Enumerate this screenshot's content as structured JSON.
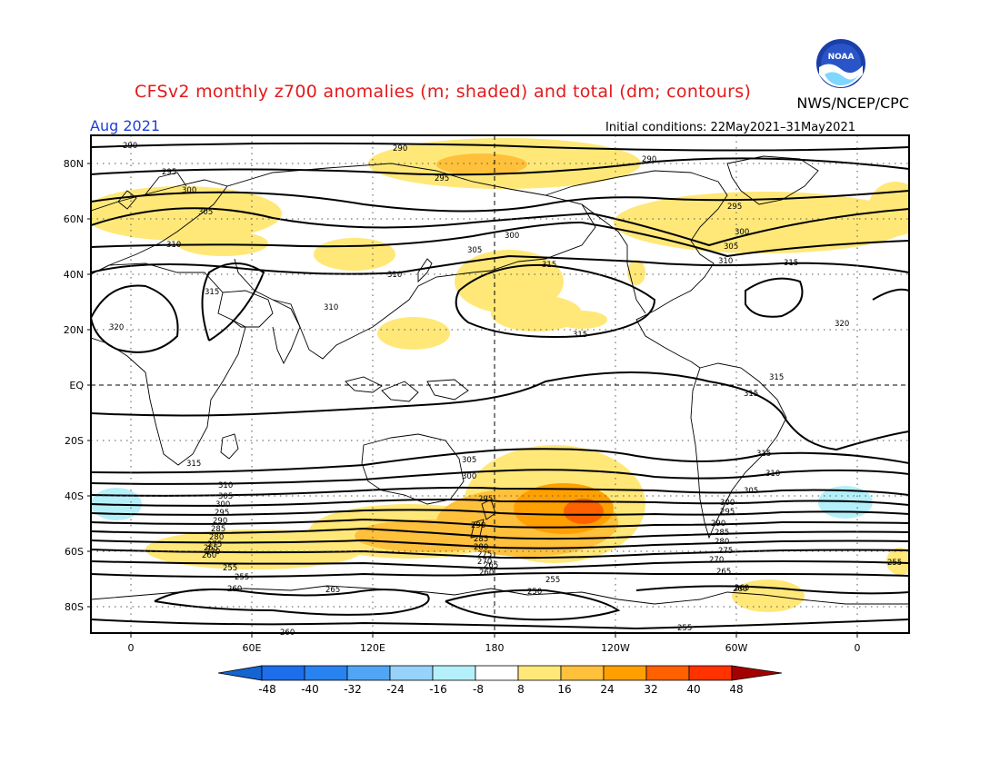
{
  "title": "CFSv2 monthly z700 anomalies (m; shaded) and total (dm; contours)",
  "agency": "NWS/NCEP/CPC",
  "month": "Aug 2021",
  "initial_conditions": "Initial conditions: 22May2021–31May2021",
  "logo_text": "NOAA",
  "map": {
    "lat_labels": [
      "80N",
      "60N",
      "40N",
      "20N",
      "EQ",
      "20S",
      "40S",
      "60S",
      "80S"
    ],
    "lon_labels": [
      "0",
      "60E",
      "120E",
      "180",
      "120W",
      "60W",
      "0"
    ],
    "contour_labels": [
      {
        "v": "290"
      },
      {
        "v": "290"
      },
      {
        "v": "290"
      },
      {
        "v": "295"
      },
      {
        "v": "295"
      },
      {
        "v": "295"
      },
      {
        "v": "300"
      },
      {
        "v": "300"
      },
      {
        "v": "300"
      },
      {
        "v": "305"
      },
      {
        "v": "305"
      },
      {
        "v": "305"
      },
      {
        "v": "310"
      },
      {
        "v": "310"
      },
      {
        "v": "310"
      },
      {
        "v": "310"
      },
      {
        "v": "310"
      },
      {
        "v": "315"
      },
      {
        "v": "315"
      },
      {
        "v": "315"
      },
      {
        "v": "315"
      },
      {
        "v": "315"
      },
      {
        "v": "315"
      },
      {
        "v": "315"
      },
      {
        "v": "315"
      },
      {
        "v": "320"
      },
      {
        "v": "320"
      },
      {
        "v": "310"
      },
      {
        "v": "305"
      },
      {
        "v": "300"
      },
      {
        "v": "295"
      },
      {
        "v": "290"
      },
      {
        "v": "285"
      },
      {
        "v": "280"
      },
      {
        "v": "275"
      },
      {
        "v": "270"
      },
      {
        "v": "265"
      },
      {
        "v": "260"
      },
      {
        "v": "305"
      },
      {
        "v": "300"
      },
      {
        "v": "295"
      },
      {
        "v": "290"
      },
      {
        "v": "285"
      },
      {
        "v": "280"
      },
      {
        "v": "275"
      },
      {
        "v": "270"
      },
      {
        "v": "265"
      },
      {
        "v": "260"
      },
      {
        "v": "305"
      },
      {
        "v": "300"
      },
      {
        "v": "295"
      },
      {
        "v": "290"
      },
      {
        "v": "285"
      },
      {
        "v": "280"
      },
      {
        "v": "275"
      },
      {
        "v": "270"
      },
      {
        "v": "265"
      },
      {
        "v": "260"
      },
      {
        "v": "255"
      },
      {
        "v": "255"
      },
      {
        "v": "260"
      },
      {
        "v": "265"
      },
      {
        "v": "255"
      },
      {
        "v": "250"
      },
      {
        "v": "255"
      },
      {
        "v": "260"
      },
      {
        "v": "260"
      },
      {
        "v": "255"
      }
    ]
  },
  "colorbar": {
    "labels": [
      "-48",
      "-40",
      "-32",
      "-24",
      "-16",
      "-8",
      "8",
      "16",
      "24",
      "32",
      "40",
      "48"
    ],
    "colors": [
      "#1464d2",
      "#1e6eeb",
      "#2882f0",
      "#50a5f5",
      "#96d2fa",
      "#b4f0fa",
      "#ffffff",
      "#ffe878",
      "#ffc03c",
      "#ffa000",
      "#ff6000",
      "#ff3200",
      "#e11400",
      "#a50000"
    ]
  }
}
